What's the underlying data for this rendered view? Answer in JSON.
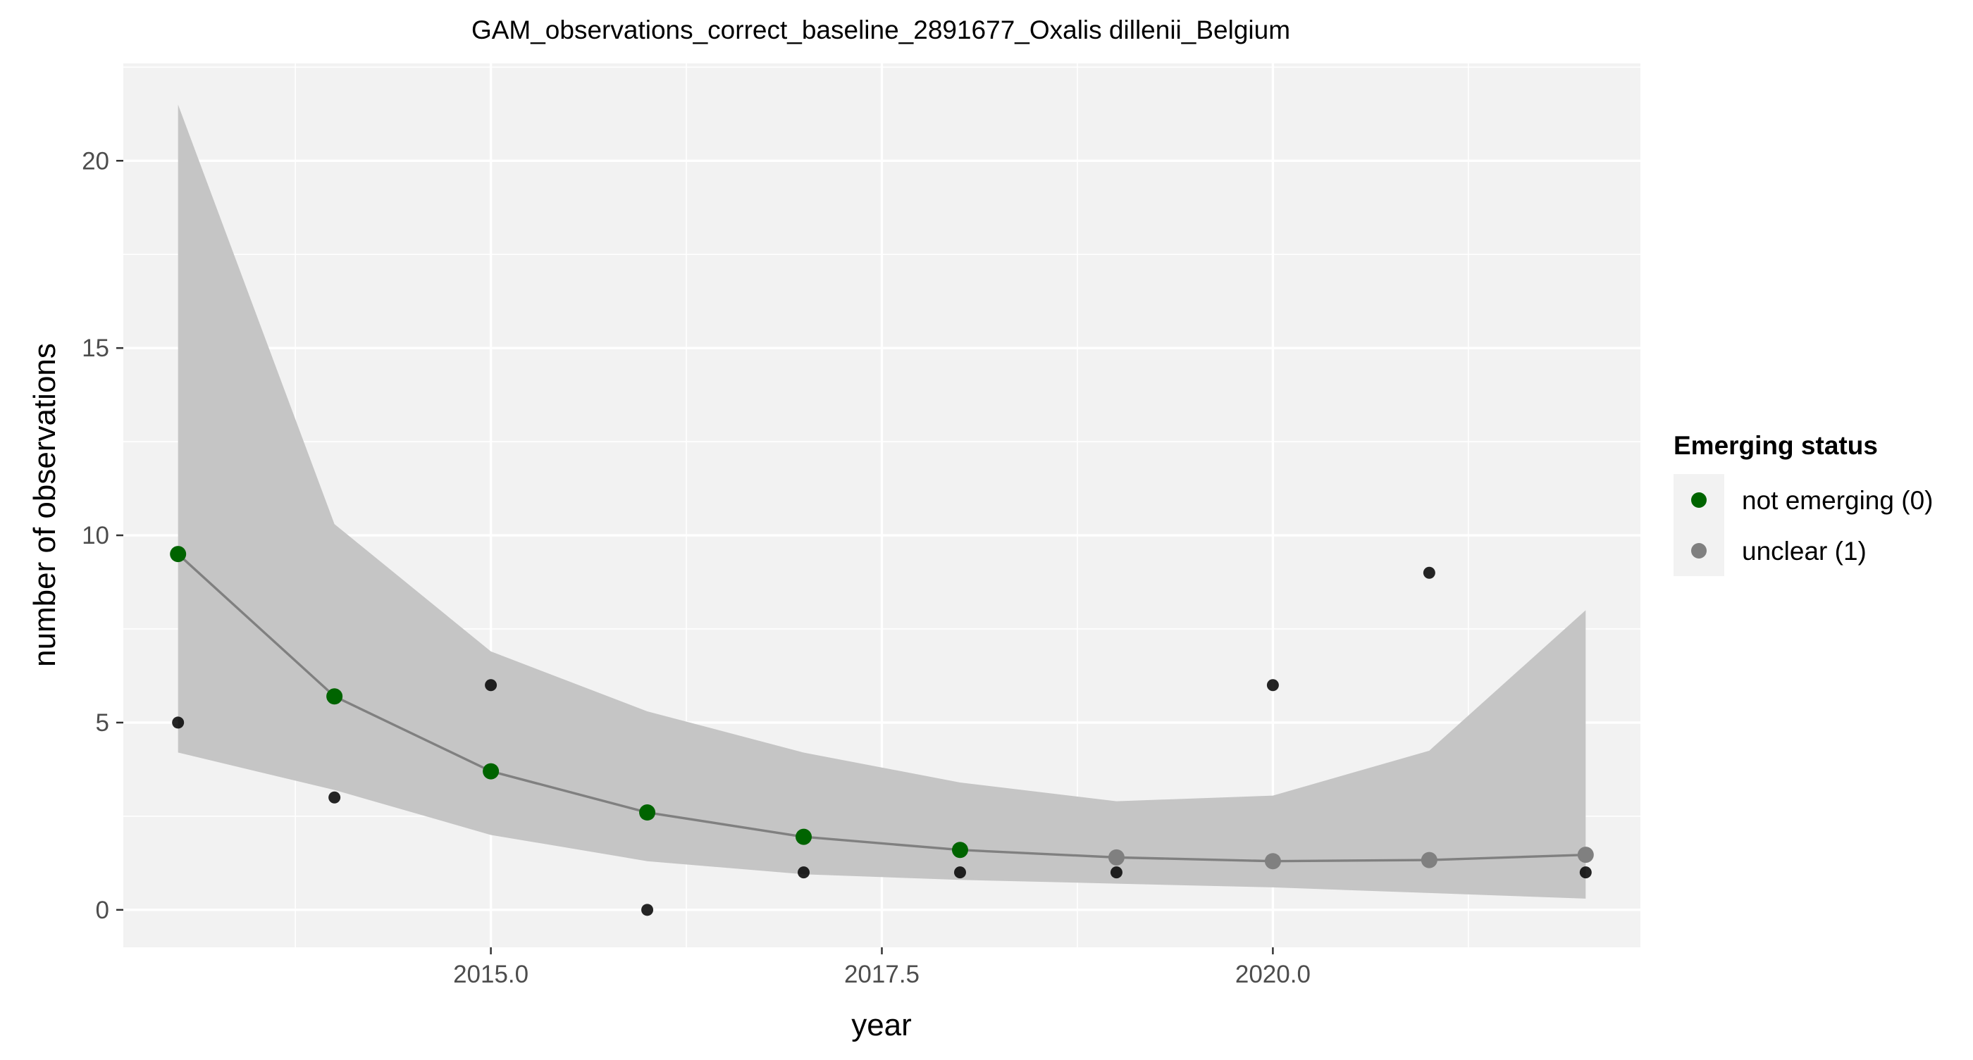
{
  "chart_data": {
    "type": "scatter",
    "title": "GAM_observations_correct_baseline_2891677_Oxalis dillenii_Belgium",
    "xlabel": "year",
    "ylabel": "number of observations",
    "xlim": [
      2012.65,
      2022.35
    ],
    "ylim": [
      -1.0,
      22.6
    ],
    "x_ticks": [
      2015.0,
      2017.5,
      2020.0
    ],
    "x_tick_labels": [
      "2015.0",
      "2017.5",
      "2020.0"
    ],
    "y_ticks": [
      0,
      5,
      10,
      15,
      20
    ],
    "y_tick_labels": [
      "0",
      "5",
      "10",
      "15",
      "20"
    ],
    "grid": true,
    "observed": {
      "x": [
        2013,
        2014,
        2015,
        2016,
        2017,
        2018,
        2019,
        2020,
        2021,
        2022
      ],
      "values": [
        5,
        3,
        6,
        0,
        1,
        1,
        1,
        6,
        9,
        1
      ]
    },
    "fit": {
      "x": [
        2013,
        2014,
        2015,
        2016,
        2017,
        2018,
        2019,
        2020,
        2021,
        2022
      ],
      "values": [
        9.5,
        5.7,
        3.7,
        2.6,
        1.95,
        1.6,
        1.4,
        1.3,
        1.33,
        1.47
      ],
      "lower": [
        4.2,
        3.2,
        2.0,
        1.3,
        0.95,
        0.8,
        0.7,
        0.6,
        0.45,
        0.3
      ],
      "upper": [
        21.5,
        10.3,
        6.9,
        5.3,
        4.2,
        3.4,
        2.9,
        3.05,
        4.25,
        8.0
      ],
      "status": [
        0,
        0,
        0,
        0,
        0,
        0,
        1,
        1,
        1,
        1
      ]
    },
    "legend": {
      "title": "Emerging status",
      "position": "right",
      "items": [
        {
          "label": "not emerging (0)",
          "color": "#006400"
        },
        {
          "label": "unclear (1)",
          "color": "#808080"
        }
      ]
    },
    "colors": {
      "panel": "#f2f2f2",
      "band": "#c5c5c5",
      "line": "#808080",
      "observed": "#000000"
    }
  }
}
